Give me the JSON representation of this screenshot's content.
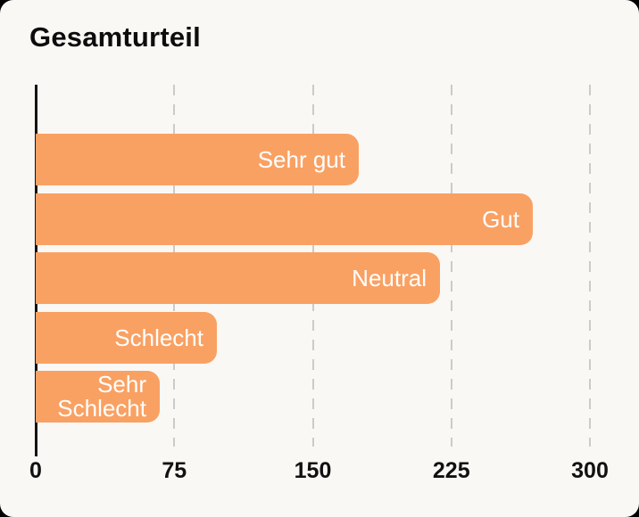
{
  "title": "Gesamturteil",
  "colors": {
    "bar": "#F9A163",
    "background": "#FAF8F5",
    "grid": "#CBCBCB",
    "axis": "#141414",
    "bar_label_text": "#FFFFFF",
    "tick_text": "#111111",
    "title_text": "#0D0D0D"
  },
  "chart_data": {
    "type": "bar",
    "orientation": "horizontal",
    "title": "Gesamturteil",
    "categories": [
      "Sehr gut",
      "Gut",
      "Neutral",
      "Schlecht",
      "Sehr Schlecht"
    ],
    "values": [
      175,
      269,
      219,
      98,
      67
    ],
    "xlabel": "",
    "ylabel": "",
    "xlim": [
      0,
      300
    ],
    "xticks": [
      0,
      75,
      150,
      225,
      300
    ],
    "grid": "vertical-dashed",
    "legend": "none",
    "bar_labels": "inside-end"
  }
}
